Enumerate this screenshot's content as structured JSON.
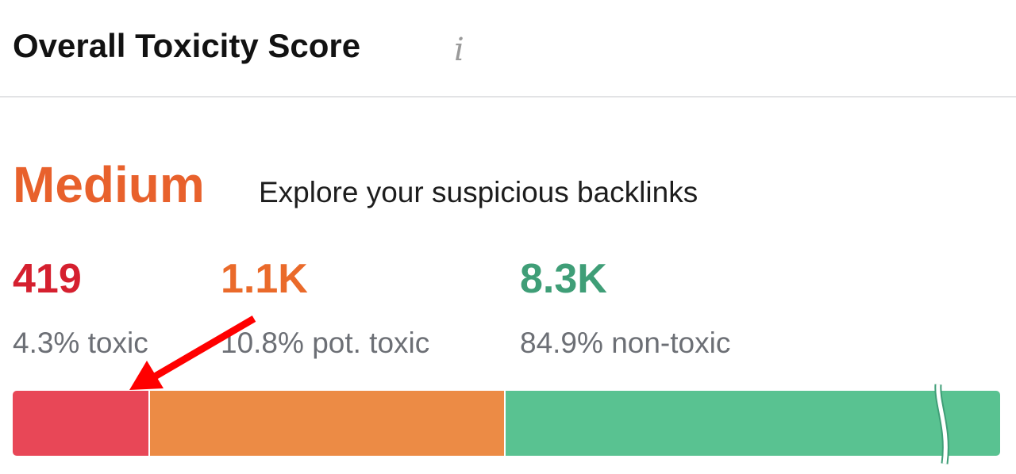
{
  "header": {
    "title": "Overall Toxicity Score",
    "info_icon": "info-icon"
  },
  "summary": {
    "level": "Medium",
    "level_color": "#e8612c",
    "link_text": "Explore your suspicious backlinks"
  },
  "stats": [
    {
      "value": "419",
      "label": "4.3% toxic",
      "color": "#d5202f",
      "bar_color": "#e84757",
      "percent": 4.3
    },
    {
      "value": "1.1K",
      "label": "10.8% pot. toxic",
      "color": "#ea6a2a",
      "bar_color": "#ec8b45",
      "percent": 10.8
    },
    {
      "value": "8.3K",
      "label": "84.9% non-toxic",
      "color": "#3f9e77",
      "bar_color": "#59c291",
      "percent": 84.9
    }
  ],
  "annotation": {
    "arrow_color": "#ff0000"
  }
}
